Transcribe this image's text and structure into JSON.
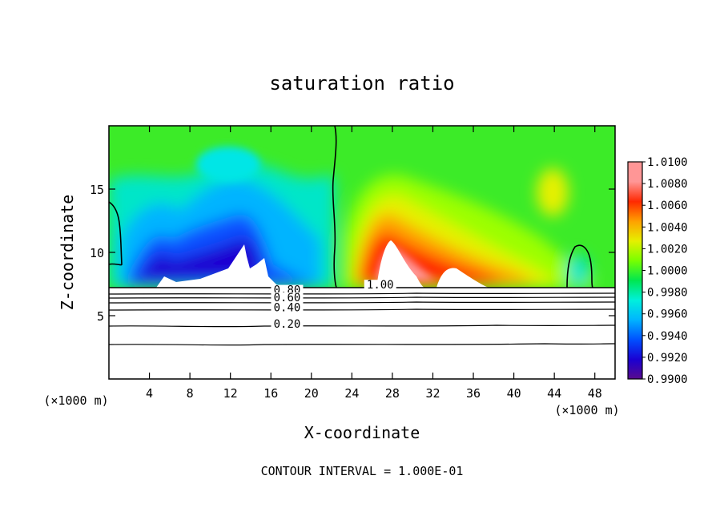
{
  "chart_data": {
    "type": "heatmap",
    "title": "saturation ratio",
    "xlabel": "X-coordinate",
    "ylabel": "Z-coordinate",
    "x_unit_label_left": "(×1000 m)",
    "x_unit_label_right": "(×1000 m)",
    "xlim": [
      0,
      50
    ],
    "ylim": [
      0,
      20
    ],
    "x_ticks": [
      4,
      8,
      12,
      16,
      20,
      24,
      28,
      32,
      36,
      40,
      44,
      48
    ],
    "y_ticks": [
      5,
      10,
      15
    ],
    "colorbar": {
      "min": 0.99,
      "max": 1.01,
      "tick_labels": [
        "0.9900",
        "0.9920",
        "0.9940",
        "0.9960",
        "0.9980",
        "1.0000",
        "1.0020",
        "1.0040",
        "1.0060",
        "1.0080",
        "1.0100"
      ],
      "colors": [
        "#5a0a8c",
        "#1a00d2",
        "#0050ff",
        "#00b4ff",
        "#00f0dc",
        "#00e650",
        "#78ff00",
        "#e6f000",
        "#ffa000",
        "#ff2800",
        "#ff9696"
      ]
    },
    "contour_labels": [
      {
        "text": "1.00",
        "x": 26.8,
        "z": 7.2
      },
      {
        "text": "0.80",
        "x": 17.6,
        "z": 6.8
      },
      {
        "text": "0.60",
        "x": 17.6,
        "z": 6.2
      },
      {
        "text": "0.40",
        "x": 17.6,
        "z": 5.4
      },
      {
        "text": "0.20",
        "x": 17.6,
        "z": 4.1
      }
    ],
    "contour_levels_below_cloud": [
      0.2,
      0.4,
      0.6,
      0.8,
      1.0
    ],
    "annotation": "CONTOUR INTERVAL = 1.000E-01"
  }
}
